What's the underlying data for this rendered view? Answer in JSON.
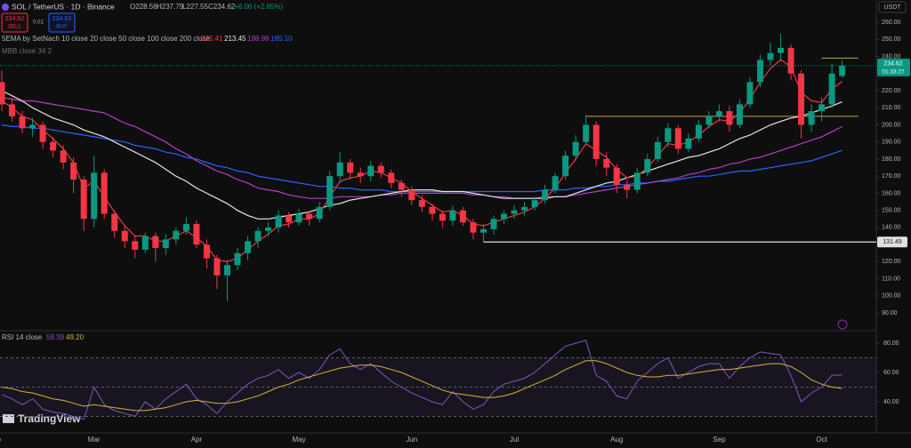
{
  "header": {
    "symbol": "SOL / TetherUS · 1D · Binance",
    "ohlc": [
      "O228.56",
      "H237.79",
      "L227.55",
      "C234.62",
      "+6.06 (+2.65%)"
    ],
    "sell_price": "234.62",
    "sell": "SELL",
    "spread": "0.01",
    "buy_price": "234.63",
    "buy": "BUY",
    "currency": "USDT",
    "ema_legend": "5EMA by SetNach 10 close 20 close 50 close 100 close 200 close",
    "mbb_legend": "MBB close 34 2",
    "rsi_legend": "RSI 14 close",
    "logo": "TradingView"
  },
  "chart_data": [
    {
      "type": "candlestick",
      "categories": [
        "Feb",
        null,
        null,
        null,
        null,
        null,
        null,
        null,
        null,
        "Mar",
        null,
        null,
        null,
        null,
        null,
        null,
        null,
        null,
        null,
        "Apr",
        null,
        null,
        null,
        null,
        null,
        null,
        null,
        null,
        null,
        "May",
        null,
        null,
        null,
        null,
        null,
        null,
        null,
        null,
        null,
        null,
        "Jun",
        null,
        null,
        null,
        null,
        null,
        null,
        null,
        null,
        null,
        "Jul",
        null,
        null,
        null,
        null,
        null,
        null,
        null,
        null,
        null,
        "Aug",
        null,
        null,
        null,
        null,
        null,
        null,
        null,
        null,
        null,
        "Sep",
        null,
        null,
        null,
        null,
        null,
        null,
        null,
        null,
        null,
        "Oct",
        null,
        null
      ],
      "open": [
        225,
        212,
        205,
        198,
        200,
        190,
        185,
        178,
        168,
        145,
        172,
        148,
        138,
        132,
        127,
        135,
        128,
        133,
        138,
        142,
        130,
        122,
        112,
        118,
        125,
        132,
        138,
        140,
        147,
        143,
        148,
        145,
        152,
        170,
        178,
        172,
        170,
        176,
        172,
        166,
        162,
        156,
        152,
        148,
        144,
        150,
        143,
        137,
        139,
        145,
        148,
        150,
        152,
        156,
        162,
        170,
        182,
        190,
        200,
        180,
        175,
        165,
        162,
        172,
        180,
        190,
        198,
        186,
        192,
        200,
        205,
        208,
        200,
        212,
        225,
        238,
        242,
        245,
        230,
        200,
        208,
        212,
        228.56
      ],
      "high": [
        232,
        216,
        208,
        204,
        202,
        193,
        188,
        181,
        170,
        182,
        174,
        150,
        141,
        135,
        137,
        137,
        136,
        140,
        146,
        144,
        133,
        124,
        121,
        128,
        135,
        140,
        143,
        150,
        149,
        151,
        150,
        155,
        173,
        184,
        180,
        175,
        179,
        178,
        174,
        168,
        164,
        159,
        154,
        150,
        153,
        152,
        145,
        142,
        147,
        150,
        153,
        155,
        158,
        165,
        172,
        185,
        194,
        206,
        202,
        184,
        177,
        168,
        175,
        183,
        193,
        201,
        200,
        195,
        203,
        208,
        212,
        211,
        215,
        228,
        241,
        248,
        253,
        247,
        232,
        212,
        216,
        236,
        237.79
      ],
      "low": [
        208,
        202,
        195,
        193,
        186,
        181,
        174,
        160,
        138,
        140,
        145,
        134,
        128,
        122,
        125,
        120,
        124,
        130,
        136,
        128,
        116,
        104,
        97,
        115,
        121,
        128,
        135,
        137,
        140,
        141,
        141,
        143,
        150,
        166,
        168,
        166,
        167,
        169,
        163,
        158,
        153,
        149,
        144,
        140,
        141,
        141,
        133,
        131.5,
        136,
        142,
        145,
        147,
        150,
        154,
        160,
        168,
        179,
        188,
        176,
        170,
        160,
        157,
        160,
        170,
        178,
        187,
        183,
        184,
        190,
        198,
        202,
        196,
        198,
        210,
        222,
        235,
        238,
        226,
        192,
        196,
        202,
        210,
        227.55
      ],
      "close": [
        212,
        205,
        198,
        200,
        190,
        185,
        178,
        168,
        145,
        172,
        148,
        138,
        132,
        127,
        135,
        128,
        133,
        138,
        142,
        130,
        122,
        112,
        118,
        125,
        132,
        138,
        140,
        147,
        143,
        148,
        145,
        152,
        170,
        178,
        172,
        170,
        176,
        172,
        166,
        162,
        156,
        152,
        148,
        144,
        150,
        143,
        137,
        139,
        145,
        148,
        150,
        152,
        156,
        162,
        170,
        182,
        190,
        200,
        180,
        175,
        165,
        162,
        172,
        180,
        190,
        198,
        186,
        192,
        200,
        205,
        208,
        200,
        212,
        225,
        238,
        242,
        245,
        230,
        200,
        208,
        212,
        230,
        234.62
      ],
      "up_color": "#089981",
      "down_color": "#f23645",
      "series": [
        {
          "name": "225.41",
          "color": "#f23645",
          "values": [
            214,
            210,
            205,
            203,
            197,
            192,
            186,
            178,
            163,
            167,
            158,
            149,
            141,
            135,
            135,
            132,
            132,
            135,
            138,
            134,
            129,
            121,
            120,
            122,
            127,
            132,
            136,
            141,
            142,
            145,
            145,
            148,
            158,
            167,
            169,
            170,
            173,
            172,
            169,
            166,
            161,
            157,
            153,
            149,
            150,
            147,
            142,
            141,
            143,
            145,
            147,
            149,
            152,
            157,
            163,
            172,
            180,
            189,
            185,
            181,
            174,
            169,
            170,
            175,
            182,
            189,
            188,
            190,
            194,
            199,
            203,
            202,
            207,
            215,
            225,
            233,
            238,
            234,
            219,
            214,
            213,
            221,
            225.41
          ]
        },
        {
          "name": "213.45",
          "color": "#e6e6e6",
          "values": [
            220,
            217,
            214,
            210,
            207,
            204,
            202,
            200,
            197,
            195,
            193,
            190,
            187,
            184,
            181,
            178,
            174,
            170,
            167,
            163,
            160,
            157,
            154,
            150,
            147,
            145,
            145,
            146,
            147,
            148,
            149,
            151,
            153,
            154,
            156,
            157,
            158,
            159,
            160,
            161,
            162,
            162,
            162,
            161,
            161,
            161,
            160,
            159,
            158,
            157,
            157,
            157,
            157,
            157,
            158,
            158,
            160,
            162,
            164,
            166,
            167,
            169,
            171,
            173,
            175,
            177,
            179,
            181,
            182,
            184,
            186,
            189,
            192,
            194,
            197,
            200,
            202,
            204,
            205,
            207,
            209,
            211,
            213.45
          ]
        },
        {
          "name": "198.98",
          "color": "#b33fc4",
          "values": [
            216,
            215,
            214,
            214,
            213,
            212,
            211,
            210,
            209,
            208,
            207,
            204,
            201,
            199,
            196,
            193,
            190,
            186,
            183,
            179,
            176,
            173,
            171,
            168,
            166,
            163,
            162,
            161,
            159,
            158,
            157,
            157,
            157,
            158,
            158,
            158,
            158,
            159,
            159,
            160,
            160,
            160,
            160,
            160,
            160,
            160,
            159,
            159,
            158,
            158,
            157,
            157,
            157,
            158,
            158,
            158,
            159,
            160,
            161,
            162,
            163,
            164,
            165,
            166,
            167,
            168,
            169,
            171,
            172,
            174,
            175,
            177,
            178,
            180,
            181,
            183,
            185,
            187,
            189,
            191,
            193,
            196,
            198.98
          ]
        },
        {
          "name": "185.10",
          "color": "#2962ff",
          "values": [
            200,
            199,
            199,
            198,
            198,
            197,
            196,
            195,
            194,
            193,
            192,
            191,
            190,
            188,
            187,
            186,
            184,
            183,
            181,
            180,
            178,
            176,
            175,
            173,
            172,
            170,
            169,
            168,
            167,
            166,
            165,
            164,
            164,
            163,
            163,
            162,
            162,
            162,
            161,
            161,
            161,
            161,
            161,
            161,
            161,
            161,
            161,
            161,
            161,
            161,
            161,
            161,
            161,
            162,
            162,
            162,
            163,
            163,
            164,
            164,
            165,
            165,
            166,
            166,
            167,
            167,
            168,
            169,
            170,
            170,
            171,
            172,
            173,
            173,
            174,
            175,
            176,
            177,
            178,
            179,
            181,
            183,
            185.1
          ]
        }
      ],
      "ylim": [
        80.7,
        273
      ],
      "yticks": [
        {
          "value": 260,
          "label": "260.00"
        },
        {
          "value": 250,
          "label": "250.00"
        },
        {
          "value": 240,
          "label": "240.00"
        },
        {
          "value": 220,
          "label": "220.00"
        },
        {
          "value": 210,
          "label": "210.00"
        },
        {
          "value": 200,
          "label": "200.00"
        },
        {
          "value": 190,
          "label": "190.00"
        },
        {
          "value": 180,
          "label": "180.00"
        },
        {
          "value": 170,
          "label": "170.00"
        },
        {
          "value": 160,
          "label": "160.00"
        },
        {
          "value": 150,
          "label": "150.00"
        },
        {
          "value": 140,
          "label": "140.00"
        },
        {
          "value": 120,
          "label": "120.00"
        },
        {
          "value": 110,
          "label": "110.00"
        },
        {
          "value": 100,
          "label": "100.00"
        },
        {
          "value": 90,
          "label": "90.00"
        }
      ],
      "hlines": [
        {
          "value": 205,
          "color": "#c9a24a"
        },
        {
          "value": 239,
          "color": "#c9a24a"
        }
      ],
      "support": 131.49,
      "last_price": {
        "value": 234.62,
        "label": "234.62",
        "countdown": "01:33:27",
        "color": "#089981"
      },
      "grid": false
    },
    {
      "type": "line",
      "series": [
        {
          "name": "58.39",
          "color": "#7e57c2",
          "values": [
            45,
            42,
            38,
            42,
            35,
            33,
            32,
            30,
            28,
            50,
            38,
            34,
            32,
            30,
            40,
            35,
            42,
            47,
            52,
            42,
            38,
            32,
            40,
            46,
            52,
            56,
            58,
            62,
            56,
            60,
            56,
            62,
            72,
            76,
            66,
            62,
            66,
            60,
            54,
            50,
            46,
            43,
            40,
            38,
            47,
            40,
            35,
            38,
            47,
            52,
            54,
            56,
            60,
            66,
            72,
            78,
            80,
            82,
            58,
            54,
            44,
            42,
            54,
            60,
            66,
            70,
            56,
            60,
            64,
            66,
            66,
            56,
            64,
            70,
            74,
            73,
            72,
            58,
            40,
            46,
            50,
            58,
            58.39
          ]
        },
        {
          "name": "49.20",
          "color": "#d4b33a",
          "values": [
            50,
            49,
            47,
            46,
            44,
            42,
            41,
            39,
            37,
            38,
            37,
            36,
            35,
            34,
            34,
            35,
            36,
            38,
            40,
            41,
            40,
            39,
            39,
            40,
            42,
            44,
            47,
            50,
            52,
            55,
            57,
            59,
            61,
            63,
            64,
            65,
            65,
            64,
            62,
            60,
            57,
            54,
            51,
            48,
            46,
            45,
            44,
            43,
            43,
            44,
            46,
            49,
            52,
            55,
            58,
            62,
            65,
            68,
            68,
            66,
            63,
            60,
            58,
            57,
            57,
            58,
            58,
            59,
            60,
            61,
            62,
            62,
            63,
            64,
            65,
            66,
            66,
            64,
            60,
            55,
            52,
            50,
            49.2
          ]
        }
      ],
      "ylim": [
        18.8,
        86.7
      ],
      "yticks": [
        {
          "value": 80,
          "label": "80.00"
        },
        {
          "value": 60,
          "label": "60.00"
        },
        {
          "value": 40,
          "label": "40.00"
        }
      ],
      "band": [
        30,
        70
      ],
      "midline": 50,
      "band_color": "#7e57c2"
    }
  ]
}
